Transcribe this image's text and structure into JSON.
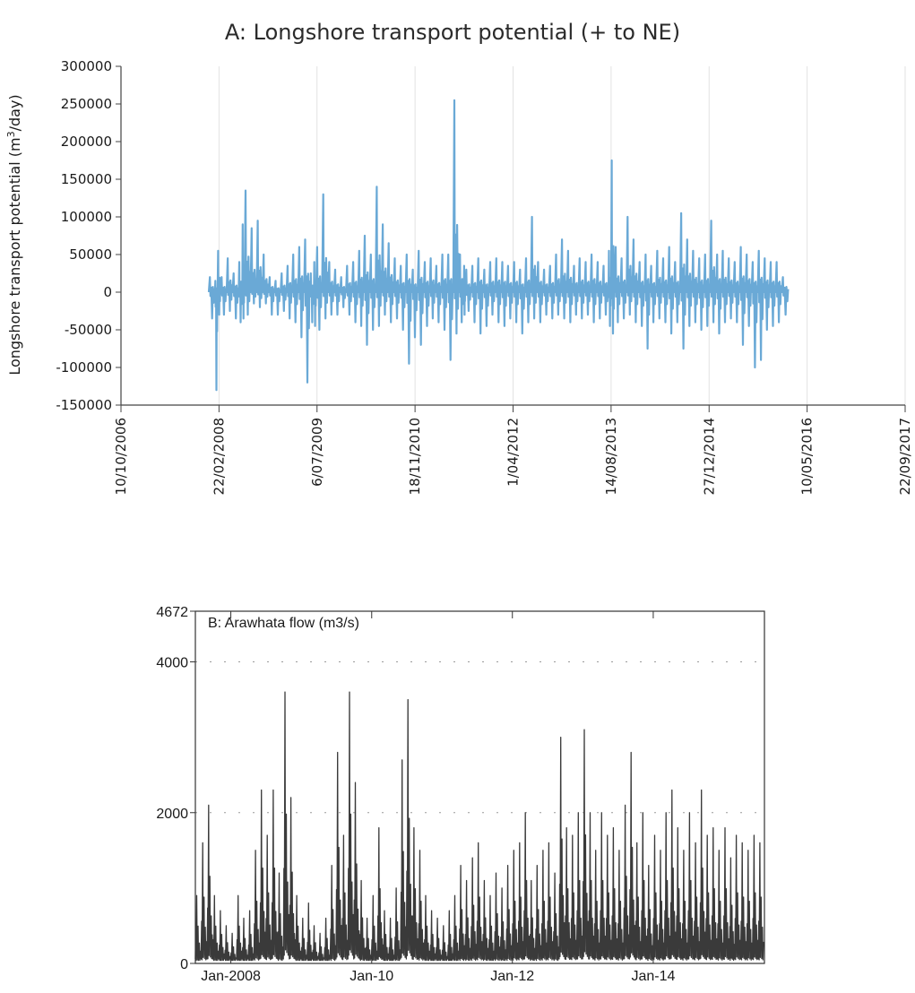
{
  "chart_data": [
    {
      "id": "A",
      "type": "line",
      "title": "A: Longshore transport potential (+ to NE)",
      "ylabel_main": "Longshore transport potential (m",
      "ylabel_sup": "3",
      "ylabel_end": "/day)",
      "xlabel": "",
      "ylim": [
        -150000,
        300000
      ],
      "yticks": [
        {
          "value": -150000,
          "label": "-150000"
        },
        {
          "value": -100000,
          "label": "-100000"
        },
        {
          "value": -50000,
          "label": "-50000"
        },
        {
          "value": 0,
          "label": "0"
        },
        {
          "value": 50000,
          "label": "50000"
        },
        {
          "value": 100000,
          "label": "100000"
        },
        {
          "value": 150000,
          "label": "150000"
        },
        {
          "value": 200000,
          "label": "200000"
        },
        {
          "value": 250000,
          "label": "250000"
        },
        {
          "value": 300000,
          "label": "300000"
        }
      ],
      "xlim": [
        "2006-10-10",
        "2017-09-22"
      ],
      "xticks": [
        {
          "value": "2006-10-10",
          "label": "10/10/2006"
        },
        {
          "value": "2008-02-22",
          "label": "22/02/2008"
        },
        {
          "value": "2009-07-06",
          "label": "6/07/2009"
        },
        {
          "value": "2010-11-18",
          "label": "18/11/2010"
        },
        {
          "value": "2012-04-01",
          "label": "1/04/2012"
        },
        {
          "value": "2013-08-14",
          "label": "14/08/2013"
        },
        {
          "value": "2014-12-27",
          "label": "27/12/2014"
        },
        {
          "value": "2016-05-10",
          "label": "10/05/2016"
        },
        {
          "value": "2017-09-22",
          "label": "22/09/2017"
        }
      ],
      "grid": "vertical gridlines at x ticks",
      "color": "#6aa9d6",
      "series": [
        {
          "x": [
            "2008-01-01",
            "2008-02-01",
            "2008-02-15",
            "2008-03-01",
            "2008-04-01",
            "2008-05-01",
            "2008-06-01",
            "2008-06-20",
            "2008-07-01",
            "2008-08-01",
            "2008-09-01",
            "2008-10-01",
            "2008-11-01",
            "2008-12-01",
            "2009-01-01",
            "2009-02-01",
            "2009-03-01",
            "2009-04-01",
            "2009-05-01",
            "2009-06-01",
            "2009-06-20",
            "2009-07-01",
            "2009-08-01",
            "2009-09-01",
            "2009-10-01",
            "2009-11-01",
            "2009-12-01",
            "2010-01-01",
            "2010-02-01",
            "2010-03-01",
            "2010-04-01",
            "2010-05-01",
            "2010-06-01",
            "2010-07-01",
            "2010-08-01",
            "2010-09-01",
            "2010-10-01",
            "2010-11-01",
            "2010-12-01",
            "2011-01-01",
            "2011-02-01",
            "2011-03-01",
            "2011-04-01",
            "2011-05-01",
            "2011-06-01",
            "2011-07-01",
            "2011-07-25",
            "2011-08-01",
            "2011-09-01",
            "2011-10-01",
            "2011-11-01",
            "2011-12-01",
            "2012-01-01",
            "2012-02-01",
            "2012-03-01",
            "2012-04-01",
            "2012-05-01",
            "2012-06-01",
            "2012-07-01",
            "2012-08-01",
            "2012-09-01",
            "2012-10-01",
            "2012-11-01",
            "2012-12-01",
            "2013-01-01",
            "2013-02-01",
            "2013-03-01",
            "2013-04-01",
            "2013-05-01",
            "2013-06-01",
            "2013-07-01",
            "2013-08-01",
            "2013-08-14",
            "2013-09-01",
            "2013-10-01",
            "2013-11-01",
            "2013-12-01",
            "2014-01-01",
            "2014-02-01",
            "2014-03-01",
            "2014-04-01",
            "2014-05-01",
            "2014-06-01",
            "2014-07-01",
            "2014-08-01",
            "2014-09-01",
            "2014-10-01",
            "2014-11-01",
            "2014-12-01",
            "2015-01-01",
            "2015-02-01",
            "2015-03-01",
            "2015-04-01",
            "2015-05-01",
            "2015-06-01",
            "2015-07-01",
            "2015-08-01",
            "2015-09-01",
            "2015-10-01",
            "2015-11-01",
            "2015-12-01",
            "2016-01-01"
          ],
          "min": [
            -35000,
            -130000,
            -30000,
            -30000,
            -25000,
            -35000,
            -40000,
            -35000,
            -30000,
            -15000,
            -20000,
            -15000,
            -30000,
            -30000,
            -25000,
            -35000,
            -40000,
            -60000,
            -120000,
            -40000,
            -45000,
            -50000,
            -35000,
            -30000,
            -30000,
            -20000,
            -30000,
            -40000,
            -45000,
            -70000,
            -50000,
            -45000,
            -30000,
            -40000,
            -35000,
            -50000,
            -95000,
            -60000,
            -70000,
            -45000,
            -35000,
            -40000,
            -50000,
            -90000,
            -55000,
            -40000,
            -30000,
            -25000,
            -40000,
            -55000,
            -45000,
            -30000,
            -40000,
            -45000,
            -35000,
            -40000,
            -55000,
            -40000,
            -35000,
            -40000,
            -30000,
            -35000,
            -30000,
            -35000,
            -40000,
            -30000,
            -35000,
            -30000,
            -40000,
            -35000,
            -30000,
            -45000,
            -55000,
            -40000,
            -35000,
            -30000,
            -40000,
            -45000,
            -75000,
            -40000,
            -35000,
            -40000,
            -55000,
            -40000,
            -75000,
            -45000,
            -40000,
            -50000,
            -45000,
            -40000,
            -55000,
            -40000,
            -35000,
            -40000,
            -70000,
            -45000,
            -100000,
            -90000,
            -50000,
            -45000,
            -40000,
            -30000
          ],
          "max": [
            20000,
            15000,
            55000,
            20000,
            45000,
            25000,
            40000,
            90000,
            135000,
            85000,
            95000,
            50000,
            20000,
            15000,
            25000,
            35000,
            50000,
            60000,
            70000,
            25000,
            40000,
            60000,
            130000,
            40000,
            30000,
            20000,
            35000,
            40000,
            55000,
            75000,
            50000,
            140000,
            90000,
            65000,
            45000,
            35000,
            50000,
            30000,
            55000,
            40000,
            45000,
            35000,
            50000,
            50000,
            255000,
            50000,
            35000,
            30000,
            35000,
            45000,
            30000,
            40000,
            45000,
            40000,
            35000,
            40000,
            30000,
            45000,
            100000,
            40000,
            30000,
            35000,
            50000,
            70000,
            55000,
            35000,
            45000,
            40000,
            50000,
            40000,
            35000,
            55000,
            175000,
            60000,
            45000,
            100000,
            70000,
            40000,
            50000,
            35000,
            55000,
            45000,
            60000,
            40000,
            105000,
            70000,
            55000,
            45000,
            50000,
            95000,
            50000,
            55000,
            45000,
            40000,
            60000,
            50000,
            40000,
            55000,
            45000,
            40000,
            40000,
            20000
          ]
        }
      ]
    },
    {
      "id": "B",
      "type": "line",
      "title": "B: Arawhata flow (m3/s)",
      "xlabel": "",
      "ylabel": "",
      "ylim": [
        0,
        4672
      ],
      "yticks": [
        {
          "value": 0,
          "label": "0"
        },
        {
          "value": 2000,
          "label": "2000"
        },
        {
          "value": 4000,
          "label": "4000"
        },
        {
          "value": 4672,
          "label": "4672"
        }
      ],
      "xlim": [
        "2007-07-01",
        "2015-08-01"
      ],
      "xticks": [
        {
          "value": "2008-01-01",
          "label": "Jan-2008"
        },
        {
          "value": "2010-01-01",
          "label": "Jan-10"
        },
        {
          "value": "2012-01-01",
          "label": "Jan-12"
        },
        {
          "value": "2014-01-01",
          "label": "Jan-14"
        }
      ],
      "grid": "dotted horizontal gridlines",
      "color": "#3a3a3a",
      "series": [
        {
          "x": [
            "2007-07",
            "2007-08",
            "2007-09",
            "2007-10",
            "2007-11",
            "2007-12",
            "2008-01",
            "2008-02",
            "2008-03",
            "2008-04",
            "2008-05",
            "2008-06",
            "2008-07",
            "2008-08",
            "2008-09",
            "2008-10",
            "2008-11",
            "2008-12",
            "2009-01",
            "2009-02",
            "2009-03",
            "2009-04",
            "2009-05",
            "2009-06",
            "2009-07",
            "2009-08",
            "2009-09",
            "2009-10",
            "2009-11",
            "2009-12",
            "2010-01",
            "2010-02",
            "2010-03",
            "2010-04",
            "2010-05",
            "2010-06",
            "2010-07",
            "2010-08",
            "2010-09",
            "2010-10",
            "2010-11",
            "2010-12",
            "2011-01",
            "2011-02",
            "2011-03",
            "2011-04",
            "2011-05",
            "2011-06",
            "2011-07",
            "2011-08",
            "2011-09",
            "2011-10",
            "2011-11",
            "2011-12",
            "2012-01",
            "2012-02",
            "2012-03",
            "2012-04",
            "2012-05",
            "2012-06",
            "2012-07",
            "2012-08",
            "2012-09",
            "2012-10",
            "2012-11",
            "2012-12",
            "2013-01",
            "2013-02",
            "2013-03",
            "2013-04",
            "2013-05",
            "2013-06",
            "2013-07",
            "2013-08",
            "2013-09",
            "2013-10",
            "2013-11",
            "2013-12",
            "2014-01",
            "2014-02",
            "2014-03",
            "2014-04",
            "2014-05",
            "2014-06",
            "2014-07",
            "2014-08",
            "2014-09",
            "2014-10",
            "2014-11",
            "2014-12",
            "2015-01",
            "2015-02",
            "2015-03",
            "2015-04",
            "2015-05",
            "2015-06",
            "2015-07"
          ],
          "peak": [
            900,
            1600,
            2100,
            900,
            700,
            500,
            400,
            900,
            600,
            700,
            1500,
            2300,
            1700,
            2300,
            1200,
            3600,
            2200,
            900,
            600,
            800,
            500,
            400,
            600,
            1300,
            2800,
            1700,
            3600,
            2400,
            1100,
            600,
            900,
            1800,
            700,
            600,
            1000,
            2700,
            3500,
            1800,
            1500,
            900,
            700,
            600,
            500,
            700,
            900,
            1300,
            1100,
            1400,
            1600,
            1100,
            900,
            1200,
            1000,
            1300,
            1500,
            1600,
            2000,
            1100,
            1300,
            1500,
            1600,
            1200,
            3000,
            1800,
            1700,
            2000,
            3100,
            2000,
            1500,
            2000,
            1700,
            1800,
            1500,
            2100,
            2800,
            1600,
            2000,
            1300,
            1700,
            1500,
            2000,
            2300,
            1800,
            1500,
            2000,
            1600,
            2300,
            1700,
            1800,
            1500,
            1800,
            1400,
            1700,
            1600,
            1500,
            1700,
            1600
          ]
        }
      ]
    }
  ]
}
